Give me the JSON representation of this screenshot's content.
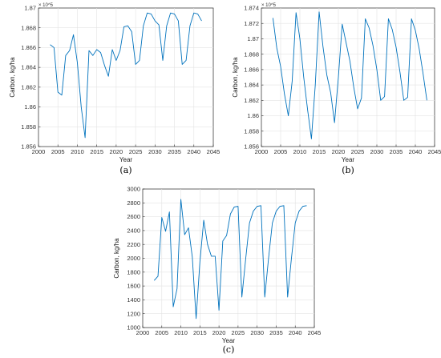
{
  "chart_data": [
    {
      "type": "line",
      "panel_label": "(a)",
      "xlabel": "Year",
      "ylabel": "Carbon, kg/ha",
      "y_exponent_label": "× 10^5",
      "xlim": [
        2000,
        2045
      ],
      "ylim": [
        1.856,
        1.87
      ],
      "xticks": [
        2000,
        2005,
        2010,
        2015,
        2020,
        2025,
        2030,
        2035,
        2040,
        2045
      ],
      "yticks": [
        1.856,
        1.858,
        1.86,
        1.862,
        1.864,
        1.866,
        1.868,
        1.87
      ],
      "ytick_labels": [
        "1.856",
        "1.858",
        "1.86",
        "1.862",
        "1.864",
        "1.866",
        "1.868",
        "1.87"
      ],
      "grid": true,
      "color": "#0072BD",
      "series": [
        {
          "x": [
            2003,
            2004,
            2005,
            2006,
            2007,
            2008,
            2009,
            2010,
            2011,
            2012,
            2013,
            2014,
            2015,
            2016,
            2017,
            2018,
            2019,
            2020,
            2021,
            2022,
            2023,
            2024,
            2025,
            2026,
            2027,
            2028,
            2029,
            2030,
            2031,
            2032,
            2033,
            2034,
            2035,
            2036,
            2037,
            2038,
            2039,
            2040,
            2041,
            2042
          ],
          "y": [
            1.8663,
            1.866,
            1.8615,
            1.8612,
            1.8652,
            1.8657,
            1.8673,
            1.8645,
            1.86,
            1.8569,
            1.8657,
            1.8652,
            1.8658,
            1.8655,
            1.8642,
            1.8631,
            1.8658,
            1.8647,
            1.8657,
            1.8681,
            1.8682,
            1.8676,
            1.8643,
            1.8647,
            1.8682,
            1.8695,
            1.8694,
            1.8687,
            1.8683,
            1.8647,
            1.8682,
            1.8695,
            1.8694,
            1.8687,
            1.8643,
            1.8647,
            1.8682,
            1.8695,
            1.8694,
            1.8687
          ]
        }
      ]
    },
    {
      "type": "line",
      "panel_label": "(b)",
      "xlabel": "Year",
      "ylabel": "Carbon, kg/ha",
      "y_exponent_label": "× 10^5",
      "xlim": [
        2000,
        2045
      ],
      "ylim": [
        1.856,
        1.874
      ],
      "xticks": [
        2000,
        2005,
        2010,
        2015,
        2020,
        2025,
        2030,
        2035,
        2040,
        2045
      ],
      "yticks": [
        1.856,
        1.858,
        1.86,
        1.862,
        1.864,
        1.866,
        1.868,
        1.87,
        1.872,
        1.874
      ],
      "ytick_labels": [
        "1.856",
        "1.858",
        "1.86",
        "1.862",
        "1.864",
        "1.866",
        "1.868",
        "1.87",
        "1.872",
        "1.874"
      ],
      "grid": true,
      "color": "#0072BD",
      "series": [
        {
          "x": [
            2003,
            2004,
            2005,
            2006,
            2007,
            2008,
            2009,
            2010,
            2011,
            2012,
            2013,
            2014,
            2015,
            2016,
            2017,
            2018,
            2019,
            2020,
            2021,
            2022,
            2023,
            2024,
            2025,
            2026,
            2027,
            2028,
            2029,
            2030,
            2031,
            2032,
            2033,
            2034,
            2035,
            2036,
            2037,
            2038,
            2039,
            2040,
            2041,
            2042,
            2043
          ],
          "y": [
            1.8727,
            1.8688,
            1.8664,
            1.8628,
            1.86,
            1.8645,
            1.8734,
            1.87,
            1.865,
            1.8608,
            1.857,
            1.864,
            1.8735,
            1.869,
            1.8653,
            1.863,
            1.8591,
            1.865,
            1.8719,
            1.8695,
            1.8671,
            1.8637,
            1.8609,
            1.8623,
            1.8726,
            1.8714,
            1.8691,
            1.866,
            1.862,
            1.8625,
            1.8726,
            1.8712,
            1.8689,
            1.8657,
            1.862,
            1.8624,
            1.8726,
            1.8711,
            1.8687,
            1.8655,
            1.862
          ]
        }
      ]
    },
    {
      "type": "line",
      "panel_label": "(c)",
      "xlabel": "Year",
      "ylabel": "Carbon, kg/ha",
      "xlim": [
        2000,
        2045
      ],
      "ylim": [
        1000,
        3000
      ],
      "xticks": [
        2000,
        2005,
        2010,
        2015,
        2020,
        2025,
        2030,
        2035,
        2040,
        2045
      ],
      "yticks": [
        1000,
        1200,
        1400,
        1600,
        1800,
        2000,
        2200,
        2400,
        2600,
        2800,
        3000
      ],
      "ytick_labels": [
        "1000",
        "1200",
        "1400",
        "1600",
        "1800",
        "2000",
        "2200",
        "2400",
        "2600",
        "2800",
        "3000"
      ],
      "grid": true,
      "color": "#0072BD",
      "series": [
        {
          "x": [
            2003,
            2004,
            2005,
            2006,
            2007,
            2008,
            2009,
            2010,
            2011,
            2012,
            2013,
            2014,
            2015,
            2016,
            2017,
            2018,
            2019,
            2020,
            2021,
            2022,
            2023,
            2024,
            2025,
            2026,
            2027,
            2028,
            2029,
            2030,
            2031,
            2032,
            2033,
            2034,
            2035,
            2036,
            2037,
            2038,
            2039,
            2040,
            2041,
            2042,
            2043
          ],
          "y": [
            1680,
            1740,
            2590,
            2390,
            2670,
            1300,
            1560,
            2850,
            2340,
            2440,
            2020,
            1130,
            1950,
            2550,
            2200,
            2030,
            2030,
            1250,
            2250,
            2330,
            2640,
            2740,
            2750,
            1440,
            1990,
            2510,
            2680,
            2750,
            2760,
            1440,
            2000,
            2510,
            2680,
            2750,
            2760,
            1440,
            2000,
            2510,
            2680,
            2750,
            2760
          ]
        }
      ]
    }
  ]
}
